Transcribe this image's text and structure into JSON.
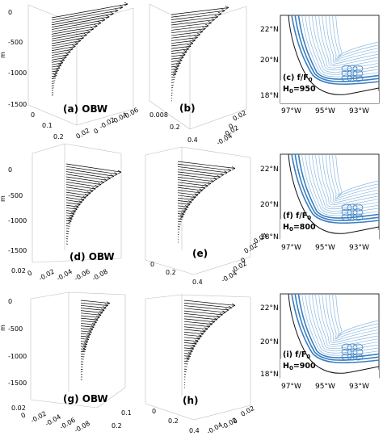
{
  "figure": {
    "rows": [
      {
        "panel_a": {
          "label": "(a) OBW",
          "depth_ticks": [
            "0",
            "-500",
            "-1000",
            "-1500"
          ],
          "x_ticks": [
            "0",
            "0.1",
            "0.2"
          ],
          "y_ticks": [
            "0.02",
            "0",
            "-0.02",
            "-0.04",
            "-0.06"
          ]
        },
        "panel_b": {
          "label": "(b)",
          "x_ticks": [
            "0.008",
            "0.2",
            "0.4"
          ],
          "y_ticks": [
            "0.02",
            "0",
            "-0.02",
            "-0.04"
          ]
        },
        "map": {
          "label_line1": "(c) f/F",
          "label_sub": "0",
          "label_line2": "H",
          "label_sub2": "0",
          "label_val": "=950",
          "lat_ticks": [
            "22°N",
            "20°N",
            "18°N"
          ],
          "lon_ticks": [
            "97°W",
            "95°W",
            "93°W"
          ]
        }
      },
      {
        "panel_a": {
          "label": "(d) OBW",
          "depth_ticks": [
            "0",
            "-500",
            "-1000",
            "-1500"
          ],
          "x_ticks": [
            "0.02",
            "0",
            "-0.02",
            "-0.04",
            "-0.06",
            "-0.08"
          ]
        },
        "panel_b": {
          "label": "(e)",
          "x_ticks": [
            "0",
            "0.2",
            "0.4"
          ],
          "y_ticks": [
            "0.04",
            "0.02",
            "0",
            "-0.02",
            "-0.04"
          ]
        },
        "map": {
          "label_line1": "(f) f/F",
          "label_sub": "0",
          "label_line2": "H",
          "label_sub2": "0",
          "label_val": "=800",
          "lat_ticks": [
            "22°N",
            "20°N",
            "18°N"
          ],
          "lon_ticks": [
            "97°W",
            "95°W",
            "93°W"
          ]
        }
      },
      {
        "panel_a": {
          "label": "(g) OBW",
          "depth_ticks": [
            "0",
            "-500",
            "-1000",
            "-1500"
          ],
          "x_ticks": [
            "0.02",
            "0",
            "-0.02",
            "-0.04",
            "-0.06",
            "-0.08"
          ],
          "y_ticks": [
            "0.2",
            "0.1"
          ]
        },
        "panel_b": {
          "label": "(h)",
          "x_ticks": [
            "0",
            "0.2",
            "0.4"
          ],
          "y_ticks": [
            "0.02",
            "0",
            "-0.02",
            "-0.04"
          ]
        },
        "map": {
          "label_line1": "(i) f/F",
          "label_sub": "0",
          "label_line2": "H",
          "label_sub2": "0",
          "label_val": "=900",
          "lat_ticks": [
            "22°N",
            "20°N",
            "18°N"
          ],
          "lon_ticks": [
            "97°W",
            "95°W",
            "93°W"
          ]
        }
      }
    ],
    "axis_unit_letter": "m",
    "colors": {
      "contour": "#3a7fc1",
      "contour_light": "#8bb8e0",
      "coast": "#111111",
      "ink": "#000000"
    }
  }
}
